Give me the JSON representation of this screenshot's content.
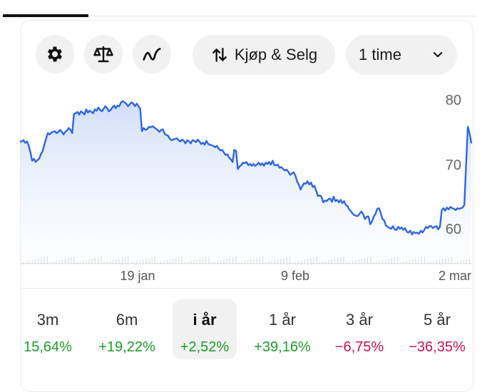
{
  "toolbar": {
    "settings_icon": "gear-icon",
    "compare_icon": "scale-icon",
    "indicator_icon": "trend-line-icon",
    "trade_label": "Kjøp & Selg",
    "trade_icon": "swap-vertical-icon",
    "interval_label": "1 time",
    "interval_icon": "chevron-down-icon"
  },
  "colors": {
    "line": "#2e66e0",
    "positive": "#1f9b2a",
    "negative": "#c8124f"
  },
  "chart_data": {
    "type": "area",
    "x_tick_labels": [
      "19 jan",
      "9 feb",
      "2 mar"
    ],
    "y_tick_labels": [
      "80",
      "70",
      "60"
    ],
    "ylim": [
      56,
      82
    ],
    "grid": false,
    "series": [
      {
        "values": [
          73.5,
          73.5,
          73.7,
          73.3,
          73.5,
          72.9,
          71.8,
          70.5,
          70.8,
          70.3,
          70.6,
          70.8,
          71.5,
          72.0,
          73.0,
          74.0,
          74.8,
          74.6,
          74.9,
          75.0,
          75.1,
          74.8,
          75.0,
          75.3,
          75.0,
          74.6,
          75.0,
          75.2,
          75.6,
          75.3,
          74.8,
          77.8,
          77.9,
          78.1,
          77.7,
          78.2,
          78.0,
          77.7,
          78.5,
          78.0,
          78.3,
          78.1,
          77.9,
          78.5,
          78.3,
          78.8,
          78.4,
          78.2,
          78.6,
          79.0,
          78.7,
          78.2,
          78.4,
          78.8,
          79.1,
          78.7,
          79.1,
          79.0,
          79.6,
          79.8,
          79.6,
          79.4,
          79.0,
          79.3,
          79.6,
          79.4,
          79.0,
          79.4,
          79.0,
          78.6,
          75.1,
          75.6,
          75.3,
          75.4,
          75.8,
          75.7,
          75.9,
          75.7,
          75.5,
          75.3,
          75.0,
          75.3,
          75.4,
          74.7,
          74.5,
          74.4,
          73.9,
          73.7,
          73.8,
          73.9,
          74.0,
          73.7,
          73.5,
          73.8,
          73.6,
          73.2,
          73.7,
          73.5,
          73.2,
          73.7,
          73.6,
          73.4,
          73.8,
          73.5,
          73.1,
          73.3,
          73.0,
          73.6,
          73.1,
          73.0,
          72.9,
          72.8,
          72.6,
          72.8,
          72.4,
          72.1,
          72.2,
          71.8,
          71.4,
          71.5,
          71.0,
          70.7,
          70.3,
          72.2,
          72.0,
          69.2,
          69.6,
          69.8,
          70.2,
          70.1,
          70.3,
          69.8,
          70.0,
          69.7,
          70.0,
          69.7,
          69.9,
          70.2,
          69.8,
          70.1,
          69.7,
          70.2,
          70.0,
          70.3,
          69.9,
          70.5,
          69.8,
          69.8,
          69.9,
          69.4,
          69.5,
          69.2,
          69.0,
          69.1,
          68.8,
          68.3,
          68.5,
          68.7,
          68.2,
          67.3,
          66.8,
          66.0,
          66.5,
          67.0,
          66.9,
          67.3,
          66.8,
          67.1,
          66.4,
          66.6,
          65.8,
          65.0,
          65.1,
          64.9,
          64.0,
          64.3,
          64.2,
          64.5,
          64.6,
          64.1,
          64.9,
          64.2,
          64.4,
          64.0,
          64.4,
          63.9,
          64.2,
          63.6,
          63.4,
          62.9,
          62.6,
          62.2,
          62.0,
          61.9,
          61.9,
          62.3,
          62.6,
          62.1,
          61.4,
          61.8,
          61.8,
          60.6,
          61.0,
          61.8,
          62.2,
          63.0,
          63.1,
          62.4,
          61.4,
          61.2,
          60.4,
          60.2,
          60.0,
          59.9,
          60.3,
          59.8,
          59.7,
          60.2,
          59.9,
          60.1,
          59.7,
          60.0,
          59.4,
          59.3,
          59.6,
          59.0,
          59.4,
          59.2,
          59.3,
          59.1,
          59.6,
          59.3,
          59.7,
          60.2,
          60.0,
          60.3,
          60.3,
          60.0,
          60.2,
          60.3,
          59.8,
          60.2,
          62.8,
          63.1,
          62.7,
          63.2,
          62.9,
          63.3,
          63.1,
          63.0,
          62.8,
          63.1,
          63.0,
          63.1,
          63.2,
          63.6,
          70.0,
          75.8,
          74.8,
          73.2
        ]
      }
    ]
  },
  "periods": [
    {
      "label": "3m",
      "value": "15,64%",
      "sign": "pos",
      "active": false
    },
    {
      "label": "6m",
      "value": "+19,22%",
      "sign": "pos",
      "active": false
    },
    {
      "label": "i år",
      "value": "+2,52%",
      "sign": "pos",
      "active": true
    },
    {
      "label": "1 år",
      "value": "+39,16%",
      "sign": "pos",
      "active": false
    },
    {
      "label": "3 år",
      "value": "−6,75%",
      "sign": "neg",
      "active": false
    },
    {
      "label": "5 år",
      "value": "−36,35%",
      "sign": "neg",
      "active": false
    }
  ]
}
